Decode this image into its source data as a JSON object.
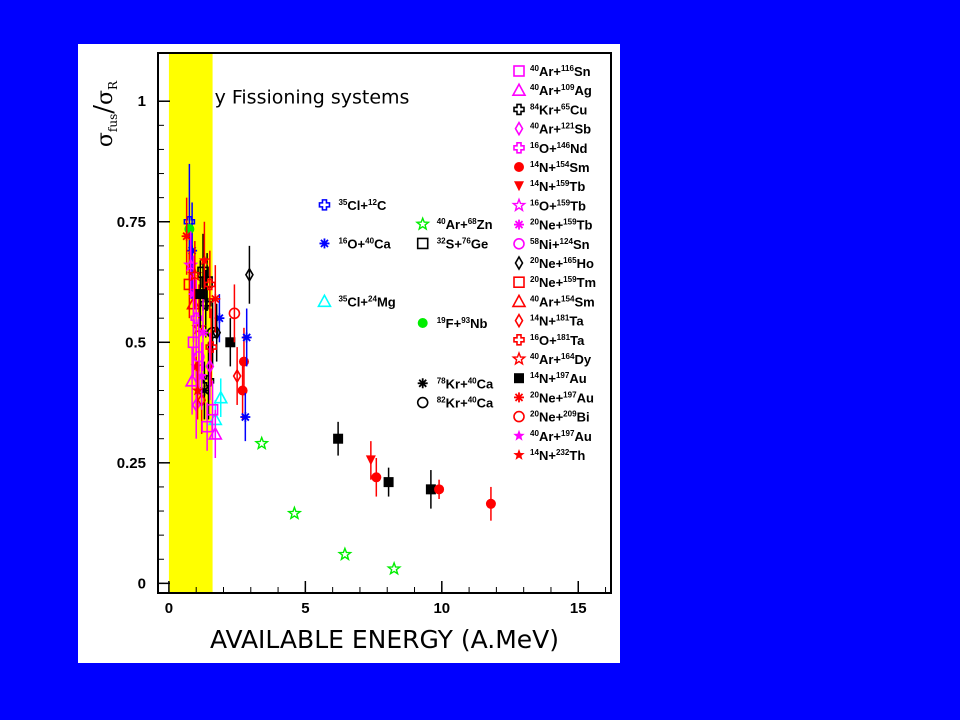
{
  "chart_data": {
    "type": "scatter",
    "xlabel": "AVAILABLE ENERGY (A.MeV)",
    "ylabel": {
      "main": "σ",
      "sub_num": "fus",
      "den": "σ",
      "sub_den": "R"
    },
    "annotation": "y Fissioning systems",
    "xlim": [
      -0.4,
      16.2
    ],
    "ylim": [
      -0.02,
      1.1
    ],
    "xticks": [
      "0",
      "5",
      "10",
      "15"
    ],
    "yticks": [
      "0",
      "0.25",
      "0.5",
      "0.75",
      "1"
    ],
    "highlight_band": {
      "x": [
        0.0,
        1.6
      ],
      "color": "#ffff00"
    },
    "colors": {
      "magenta": "#ff00ff",
      "black": "#000000",
      "red": "#ff0000",
      "blue": "#0000ff",
      "cyan": "#00ffff",
      "green": "#00ee00"
    },
    "legend_right": [
      {
        "a": "40",
        "p": "Ar",
        "ta": "116",
        "t": "Sn",
        "marker": "square-open",
        "color": "magenta"
      },
      {
        "a": "40",
        "p": "Ar",
        "ta": "109",
        "t": "Ag",
        "marker": "triangle-open",
        "color": "magenta"
      },
      {
        "a": "84",
        "p": "Kr",
        "ta": "65",
        "t": "Cu",
        "marker": "cross-open",
        "color": "black"
      },
      {
        "a": "40",
        "p": "Ar",
        "ta": "121",
        "t": "Sb",
        "marker": "diamond-open",
        "color": "magenta"
      },
      {
        "a": "16",
        "p": "O",
        "ta": "146",
        "t": "Nd",
        "marker": "cross-open",
        "color": "magenta"
      },
      {
        "a": "14",
        "p": "N",
        "ta": "154",
        "t": "Sm",
        "marker": "circle",
        "color": "red"
      },
      {
        "a": "14",
        "p": "N",
        "ta": "159",
        "t": "Tb",
        "marker": "triangle-down",
        "color": "red"
      },
      {
        "a": "16",
        "p": "O",
        "ta": "159",
        "t": "Tb",
        "marker": "star-open",
        "color": "magenta"
      },
      {
        "a": "20",
        "p": "Ne",
        "ta": "159",
        "t": "Tb",
        "marker": "asterisk",
        "color": "magenta"
      },
      {
        "a": "58",
        "p": "Ni",
        "ta": "124",
        "t": "Sn",
        "marker": "circle-open",
        "color": "magenta"
      },
      {
        "a": "20",
        "p": "Ne",
        "ta": "165",
        "t": "Ho",
        "marker": "diamond-open",
        "color": "black"
      },
      {
        "a": "20",
        "p": "Ne",
        "ta": "159",
        "t": "Tm",
        "marker": "square-open",
        "color": "red"
      },
      {
        "a": "40",
        "p": "Ar",
        "ta": "154",
        "t": "Sm",
        "marker": "triangle-open",
        "color": "red"
      },
      {
        "a": "14",
        "p": "N",
        "ta": "181",
        "t": "Ta",
        "marker": "diamond-open",
        "color": "red"
      },
      {
        "a": "16",
        "p": "O",
        "ta": "181",
        "t": "Ta",
        "marker": "cross-open",
        "color": "red"
      },
      {
        "a": "40",
        "p": "Ar",
        "ta": "164",
        "t": "Dy",
        "marker": "star-open",
        "color": "red"
      },
      {
        "a": "14",
        "p": "N",
        "ta": "197",
        "t": "Au",
        "marker": "square",
        "color": "black"
      },
      {
        "a": "20",
        "p": "Ne",
        "ta": "197",
        "t": "Au",
        "marker": "asterisk",
        "color": "red"
      },
      {
        "a": "20",
        "p": "Ne",
        "ta": "209",
        "t": "Bi",
        "marker": "circle-open",
        "color": "red"
      },
      {
        "a": "40",
        "p": "Ar",
        "ta": "197",
        "t": "Au",
        "marker": "star",
        "color": "magenta"
      },
      {
        "a": "14",
        "p": "N",
        "ta": "232",
        "t": "Th",
        "marker": "star",
        "color": "red"
      }
    ],
    "legend_inner": [
      {
        "a": "35",
        "p": "Cl",
        "ta": "12",
        "t": "C",
        "marker": "cross-open",
        "color": "blue",
        "x": 5.7,
        "y": 0.785
      },
      {
        "a": "16",
        "p": "O",
        "ta": "40",
        "t": "Ca",
        "marker": "asterisk",
        "color": "blue",
        "x": 5.7,
        "y": 0.705
      },
      {
        "a": "35",
        "p": "Cl",
        "ta": "24",
        "t": "Mg",
        "marker": "triangle-open",
        "color": "cyan",
        "x": 5.7,
        "y": 0.585
      },
      {
        "a": "40",
        "p": "Ar",
        "ta": "68",
        "t": "Zn",
        "marker": "star-open",
        "color": "green",
        "x": 9.3,
        "y": 0.745
      },
      {
        "a": "32",
        "p": "S",
        "ta": "76",
        "t": "Ge",
        "marker": "square-open",
        "color": "black",
        "x": 9.3,
        "y": 0.705
      },
      {
        "a": "19",
        "p": "F",
        "ta": "93",
        "t": "Nb",
        "marker": "circle",
        "color": "green",
        "x": 9.3,
        "y": 0.54
      },
      {
        "a": "78",
        "p": "Kr",
        "ta": "40",
        "t": "Ca",
        "marker": "asterisk",
        "color": "black",
        "x": 9.3,
        "y": 0.415
      },
      {
        "a": "82",
        "p": "Kr",
        "ta": "40",
        "t": "Ca",
        "marker": "circle-open",
        "color": "black",
        "x": 9.3,
        "y": 0.375
      }
    ],
    "points": [
      {
        "x": 8.25,
        "y": 0.03,
        "err": 0,
        "marker": "star-open",
        "color": "green"
      },
      {
        "x": 6.45,
        "y": 0.06,
        "err": 0,
        "marker": "star-open",
        "color": "green"
      },
      {
        "x": 4.6,
        "y": 0.145,
        "err": 0,
        "marker": "star-open",
        "color": "green"
      },
      {
        "x": 3.4,
        "y": 0.29,
        "err": 0,
        "marker": "star-open",
        "color": "green"
      },
      {
        "x": 9.6,
        "y": 0.195,
        "err": 0.04,
        "marker": "square",
        "color": "black"
      },
      {
        "x": 8.05,
        "y": 0.21,
        "err": 0.03,
        "marker": "square",
        "color": "black"
      },
      {
        "x": 6.2,
        "y": 0.3,
        "err": 0.035,
        "marker": "square",
        "color": "black"
      },
      {
        "x": 2.25,
        "y": 0.5,
        "err": 0.05,
        "marker": "square",
        "color": "black"
      },
      {
        "x": 11.8,
        "y": 0.165,
        "err": 0.035,
        "marker": "circle",
        "color": "red"
      },
      {
        "x": 9.9,
        "y": 0.195,
        "err": 0.02,
        "marker": "circle",
        "color": "red"
      },
      {
        "x": 7.6,
        "y": 0.22,
        "err": 0.04,
        "marker": "circle",
        "color": "red"
      },
      {
        "x": 2.75,
        "y": 0.46,
        "err": 0.07,
        "marker": "circle",
        "color": "red"
      },
      {
        "x": 2.7,
        "y": 0.4,
        "err": 0.06,
        "marker": "circle",
        "color": "red"
      },
      {
        "x": 7.4,
        "y": 0.255,
        "err": 0.04,
        "marker": "triangle-down",
        "color": "red"
      },
      {
        "x": 2.95,
        "y": 0.64,
        "err": 0.06,
        "marker": "diamond-open",
        "color": "black"
      },
      {
        "x": 2.85,
        "y": 0.51,
        "err": 0.06,
        "marker": "asterisk",
        "color": "blue"
      },
      {
        "x": 2.8,
        "y": 0.345,
        "err": 0.05,
        "marker": "asterisk",
        "color": "blue"
      },
      {
        "x": 1.85,
        "y": 0.55,
        "err": 0.05,
        "marker": "asterisk",
        "color": "blue"
      },
      {
        "x": 0.75,
        "y": 0.75,
        "err": 0.12,
        "marker": "cross-open",
        "color": "blue"
      },
      {
        "x": 0.85,
        "y": 0.69,
        "err": 0.1,
        "marker": "asterisk",
        "color": "blue"
      },
      {
        "x": 1.9,
        "y": 0.385,
        "err": 0.04,
        "marker": "triangle-open",
        "color": "cyan"
      },
      {
        "x": 1.7,
        "y": 0.34,
        "err": 0.04,
        "marker": "triangle-open",
        "color": "cyan"
      },
      {
        "x": 0.75,
        "y": 0.735,
        "err": 0,
        "marker": "circle",
        "color": "green"
      },
      {
        "x": 1.4,
        "y": 0.625,
        "err": 0.06,
        "marker": "square-open",
        "color": "black"
      },
      {
        "x": 1.25,
        "y": 0.645,
        "err": 0.08,
        "marker": "square-open",
        "color": "black"
      },
      {
        "x": 1.35,
        "y": 0.58,
        "err": 0.07,
        "marker": "cross-open",
        "color": "black"
      },
      {
        "x": 1.45,
        "y": 0.42,
        "err": 0.08,
        "marker": "cross-open",
        "color": "black"
      },
      {
        "x": 1.3,
        "y": 0.4,
        "err": 0.06,
        "marker": "asterisk",
        "color": "black"
      },
      {
        "x": 1.6,
        "y": 0.52,
        "err": 0.07,
        "marker": "circle-open",
        "color": "black"
      },
      {
        "x": 1.75,
        "y": 0.52,
        "err": 0.06,
        "marker": "diamond-open",
        "color": "black"
      },
      {
        "x": 2.4,
        "y": 0.56,
        "err": 0.06,
        "marker": "circle-open",
        "color": "red"
      },
      {
        "x": 2.5,
        "y": 0.43,
        "err": 0.06,
        "marker": "diamond-open",
        "color": "red"
      },
      {
        "x": 1.55,
        "y": 0.49,
        "err": 0.08,
        "marker": "cross-open",
        "color": "red"
      },
      {
        "x": 1.7,
        "y": 0.59,
        "err": 0.07,
        "marker": "asterisk",
        "color": "red"
      },
      {
        "x": 0.65,
        "y": 0.72,
        "err": 0.08,
        "marker": "asterisk",
        "color": "red"
      },
      {
        "x": 0.75,
        "y": 0.62,
        "err": 0.07,
        "marker": "square-open",
        "color": "red"
      },
      {
        "x": 0.9,
        "y": 0.58,
        "err": 0.08,
        "marker": "triangle-open",
        "color": "red"
      },
      {
        "x": 1.1,
        "y": 0.53,
        "err": 0.09,
        "marker": "star-open",
        "color": "red"
      },
      {
        "x": 1.0,
        "y": 0.45,
        "err": 0.08,
        "marker": "star",
        "color": "red"
      },
      {
        "x": 1.2,
        "y": 0.38,
        "err": 0.07,
        "marker": "diamond-open",
        "color": "red"
      },
      {
        "x": 1.3,
        "y": 0.67,
        "err": 0.08,
        "marker": "star",
        "color": "red"
      },
      {
        "x": 1.5,
        "y": 0.62,
        "err": 0.07,
        "marker": "cross-open",
        "color": "red"
      },
      {
        "x": 0.8,
        "y": 0.66,
        "err": 0.07,
        "marker": "star-open",
        "color": "magenta"
      },
      {
        "x": 0.9,
        "y": 0.6,
        "err": 0.08,
        "marker": "asterisk",
        "color": "magenta"
      },
      {
        "x": 1.0,
        "y": 0.55,
        "err": 0.08,
        "marker": "cross-open",
        "color": "magenta"
      },
      {
        "x": 1.1,
        "y": 0.47,
        "err": 0.08,
        "marker": "circle-open",
        "color": "magenta"
      },
      {
        "x": 0.85,
        "y": 0.42,
        "err": 0.07,
        "marker": "triangle-open",
        "color": "magenta"
      },
      {
        "x": 1.0,
        "y": 0.37,
        "err": 0.07,
        "marker": "diamond-open",
        "color": "magenta"
      },
      {
        "x": 1.4,
        "y": 0.325,
        "err": 0.05,
        "marker": "square-open",
        "color": "magenta"
      },
      {
        "x": 1.7,
        "y": 0.31,
        "err": 0.05,
        "marker": "triangle-open",
        "color": "magenta"
      },
      {
        "x": 1.6,
        "y": 0.36,
        "err": 0.06,
        "marker": "square-open",
        "color": "magenta"
      },
      {
        "x": 1.2,
        "y": 0.43,
        "err": 0.07,
        "marker": "star",
        "color": "magenta"
      },
      {
        "x": 0.9,
        "y": 0.5,
        "err": 0.07,
        "marker": "square-open",
        "color": "magenta"
      },
      {
        "x": 1.25,
        "y": 0.52,
        "err": 0.08,
        "marker": "asterisk",
        "color": "magenta"
      },
      {
        "x": 1.5,
        "y": 0.45,
        "err": 0.07,
        "marker": "diamond-open",
        "color": "magenta"
      },
      {
        "x": 0.95,
        "y": 0.64,
        "err": 0.07,
        "marker": "star-open",
        "color": "red"
      },
      {
        "x": 1.15,
        "y": 0.6,
        "err": 0.07,
        "marker": "square",
        "color": "black"
      },
      {
        "x": 1.05,
        "y": 0.4,
        "err": 0.06,
        "marker": "star",
        "color": "red"
      }
    ]
  }
}
